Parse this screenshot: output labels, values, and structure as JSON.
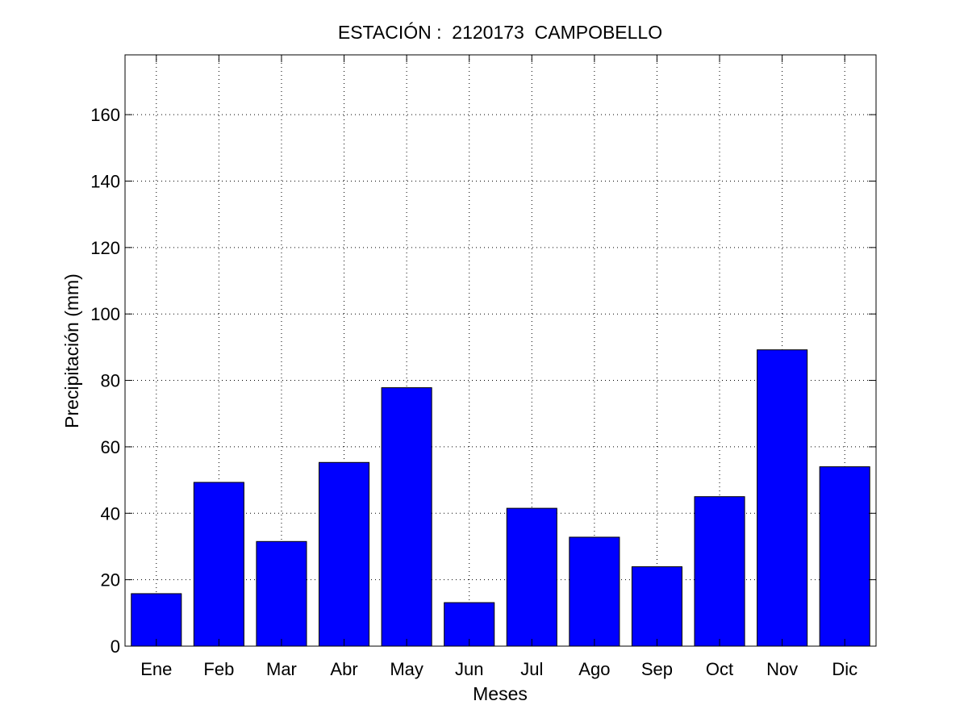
{
  "chart_data": {
    "type": "bar",
    "title": "ESTACIÓN :  2120173  CAMPOBELLO",
    "xlabel": "Meses",
    "ylabel": "Precipitación (mm)",
    "categories": [
      "Ene",
      "Feb",
      "Mar",
      "Abr",
      "May",
      "Jun",
      "Jul",
      "Ago",
      "Sep",
      "Oct",
      "Nov",
      "Dic"
    ],
    "values": [
      15.8,
      49.3,
      31.5,
      55.3,
      77.8,
      13.1,
      41.5,
      32.8,
      23.9,
      45.0,
      89.2,
      54.0
    ],
    "ylim": [
      0,
      178
    ],
    "yticks": [
      0,
      20,
      40,
      60,
      80,
      100,
      120,
      140,
      160
    ],
    "grid": true,
    "bar_color": "#0000ff",
    "bar_edge_color": "#000000"
  }
}
